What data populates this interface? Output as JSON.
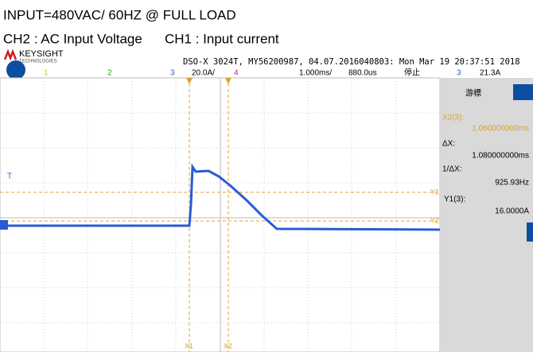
{
  "title": "INPUT=480VAC/ 60HZ @ FULL LOAD",
  "channels": [
    "CH2 : AC Input Voltage",
    "CH1 : Input current"
  ],
  "brand": {
    "name": "KEYSIGHT",
    "sub": "TECHNOLOGIES"
  },
  "scope": {
    "info": "DSO-X 3024T, MY56200987, 04.07.2016040803: Mon Mar 19 20:37:51 2018",
    "ch_numbers": [
      "1",
      "2",
      "3",
      "4"
    ],
    "ch_scale": "20.0A/",
    "ch_scale_num": "4",
    "time_scale": "1.000ms/",
    "delay": "880.0us",
    "state": "停止",
    "trig_ch": "3",
    "trig_level": "21.3A"
  },
  "panel": {
    "title": "游標",
    "x2_label": "X2(3):",
    "x2_value": "1.060000000ms",
    "dx_label": "ΔX:",
    "dx_value": "1.080000000ms",
    "inv_label": "1/ΔX:",
    "inv_value": "925.93Hz",
    "y1_label": "Y1(3):",
    "y1_value": "16.0000A"
  },
  "markers": {
    "t": "T",
    "y1": "Y1",
    "y2": "Y2",
    "x1": "X1",
    "x2": "X2"
  }
}
